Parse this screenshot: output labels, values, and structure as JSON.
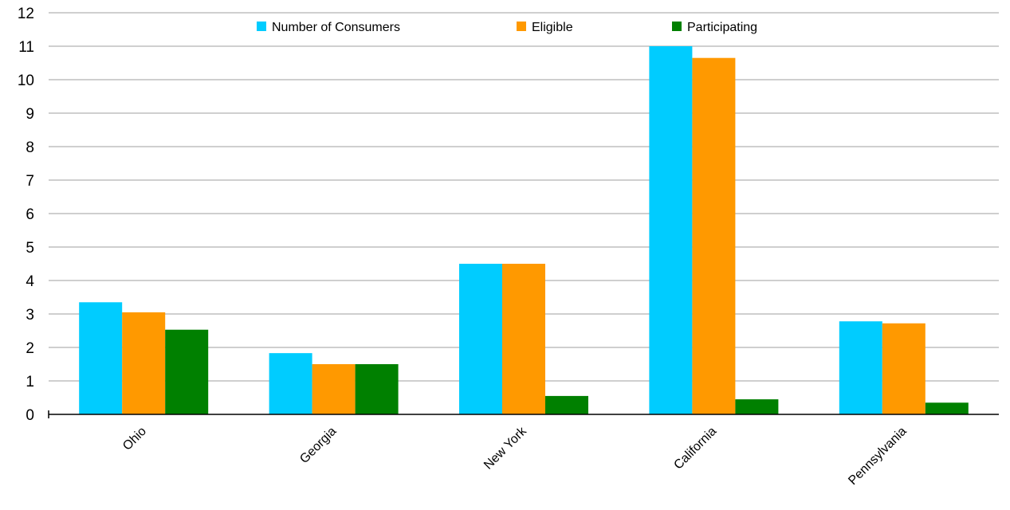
{
  "chart_data": {
    "type": "bar",
    "categories": [
      "Ohio",
      "Georgia",
      "New York",
      "California",
      "Pennsylvania"
    ],
    "series": [
      {
        "name": "Number of Consumers",
        "color": "#00ccff",
        "values": [
          3.35,
          1.83,
          4.5,
          11.0,
          2.78
        ]
      },
      {
        "name": "Eligible",
        "color": "#ff9900",
        "values": [
          3.05,
          1.5,
          4.5,
          10.65,
          2.72
        ]
      },
      {
        "name": "Participating",
        "color": "#008000",
        "values": [
          2.53,
          1.5,
          0.55,
          0.45,
          0.35
        ]
      }
    ],
    "ylim": [
      0,
      12
    ],
    "yticks": [
      0,
      1,
      2,
      3,
      4,
      5,
      6,
      7,
      8,
      9,
      10,
      11,
      12
    ],
    "grid": true,
    "legend": "top-center"
  }
}
